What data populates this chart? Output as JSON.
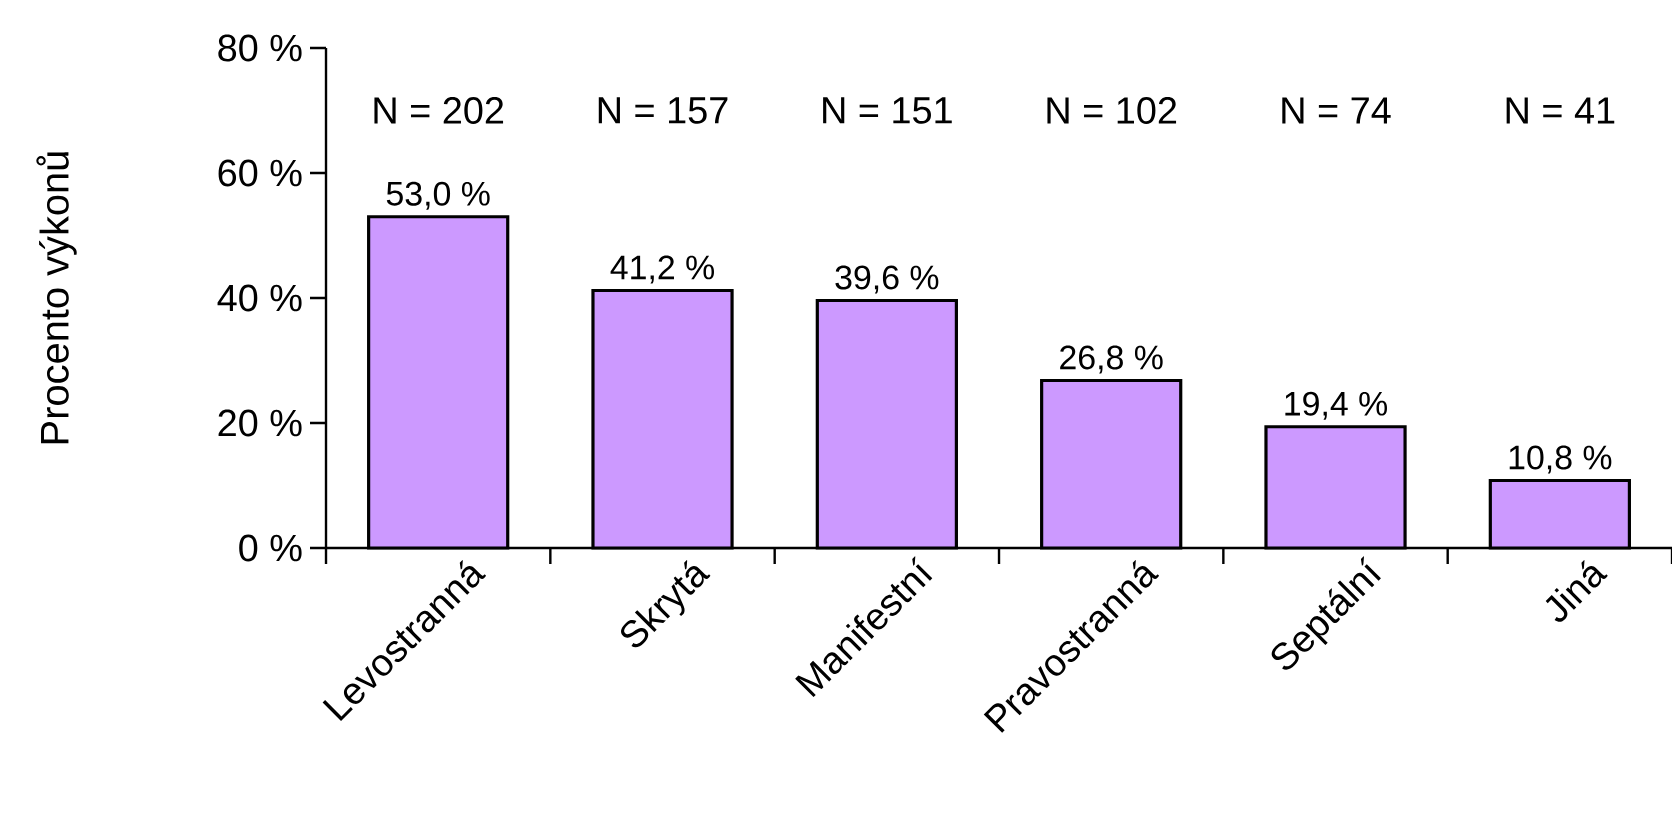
{
  "chart_data": {
    "type": "bar",
    "ylabel": "Procento výkonů",
    "categories": [
      "Levostranná",
      "Skrytá",
      "Manifestní",
      "Pravostranná",
      "Septální",
      "Jiná"
    ],
    "values": [
      53.0,
      41.2,
      39.6,
      26.8,
      19.4,
      10.8
    ],
    "value_labels": [
      "53,0 %",
      "41,2 %",
      "39,6 %",
      "26,8 %",
      "19,4 %",
      "10,8 %"
    ],
    "color": "#cc99ff",
    "ylim": [
      0,
      80
    ],
    "yticks": [
      {
        "value": 0,
        "label": "0 %"
      },
      {
        "value": 20,
        "label": "20 %"
      },
      {
        "value": 40,
        "label": "40 %"
      },
      {
        "value": 60,
        "label": "60 %"
      },
      {
        "value": 80,
        "label": "80 %"
      }
    ],
    "annotations": [
      "N = 202",
      "N = 157",
      "N = 151",
      "N = 102",
      "N = 74",
      "N = 41"
    ],
    "grid": false
  }
}
